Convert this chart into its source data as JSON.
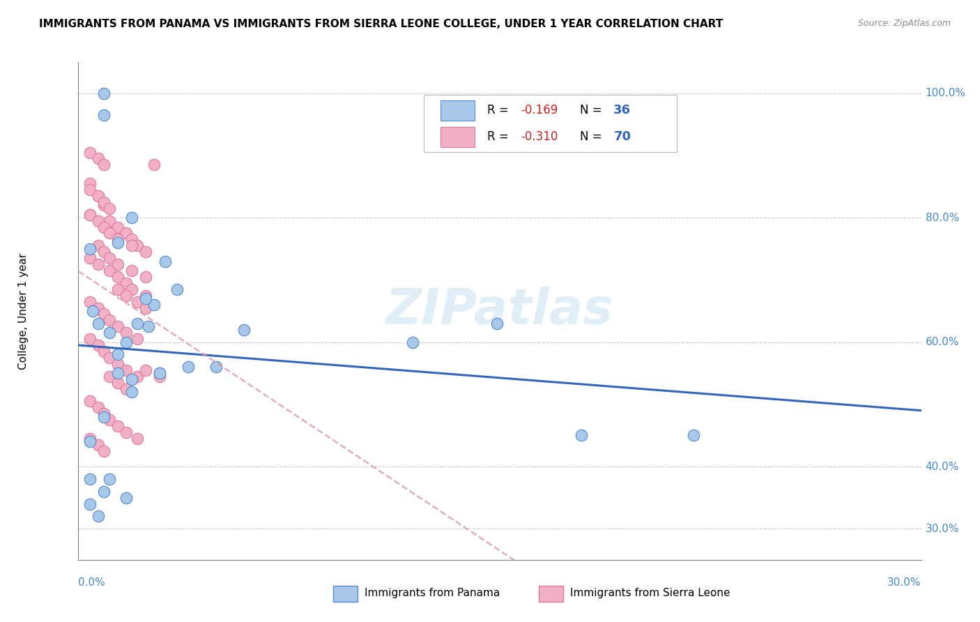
{
  "title": "IMMIGRANTS FROM PANAMA VS IMMIGRANTS FROM SIERRA LEONE COLLEGE, UNDER 1 YEAR CORRELATION CHART",
  "source": "Source: ZipAtlas.com",
  "ylabel": "College, Under 1 year",
  "xlim": [
    0.0,
    0.3
  ],
  "ylim": [
    0.25,
    1.05
  ],
  "yticks": [
    0.3,
    0.4,
    0.6,
    0.8,
    1.0
  ],
  "ytick_labels": [
    "30.0%",
    "40.0%",
    "60.0%",
    "80.0%",
    "100.0%"
  ],
  "xtick_left": "0.0%",
  "xtick_right": "30.0%",
  "watermark": "ZIPatlas",
  "legend_r1": "-0.169",
  "legend_n1": "36",
  "legend_r2": "-0.310",
  "legend_n2": "70",
  "color_panama": "#a8c8ea",
  "color_panama_edge": "#5588cc",
  "color_sierra": "#f2b0c4",
  "color_sierra_edge": "#dd7799",
  "color_trendline_panama": "#3366bb",
  "color_trendline_sierra": "#dd99aa",
  "panama_x": [
    0.025,
    0.035,
    0.009,
    0.019,
    0.014,
    0.005,
    0.007,
    0.011,
    0.017,
    0.021,
    0.027,
    0.031,
    0.014,
    0.009,
    0.019,
    0.024,
    0.004,
    0.014,
    0.029,
    0.039,
    0.004,
    0.009,
    0.019,
    0.029,
    0.049,
    0.059,
    0.119,
    0.149,
    0.179,
    0.004,
    0.007,
    0.011,
    0.017,
    0.219,
    0.004,
    0.009
  ],
  "panama_y": [
    0.625,
    0.685,
    0.965,
    0.8,
    0.76,
    0.65,
    0.63,
    0.615,
    0.6,
    0.63,
    0.66,
    0.73,
    0.55,
    0.48,
    0.52,
    0.67,
    0.44,
    0.58,
    0.55,
    0.56,
    0.38,
    0.36,
    0.54,
    0.55,
    0.56,
    0.62,
    0.6,
    0.63,
    0.45,
    0.34,
    0.32,
    0.38,
    0.35,
    0.45,
    0.75,
    1.0
  ],
  "sierra_x": [
    0.004,
    0.007,
    0.009,
    0.011,
    0.014,
    0.017,
    0.019,
    0.021,
    0.024,
    0.027,
    0.004,
    0.007,
    0.011,
    0.014,
    0.017,
    0.019,
    0.024,
    0.004,
    0.007,
    0.009,
    0.011,
    0.014,
    0.017,
    0.021,
    0.004,
    0.007,
    0.009,
    0.011,
    0.014,
    0.019,
    0.024,
    0.004,
    0.007,
    0.009,
    0.011,
    0.014,
    0.017,
    0.021,
    0.004,
    0.007,
    0.009,
    0.011,
    0.014,
    0.019,
    0.024,
    0.029,
    0.004,
    0.007,
    0.009,
    0.011,
    0.014,
    0.017,
    0.021,
    0.024,
    0.004,
    0.007,
    0.009,
    0.011,
    0.014,
    0.017,
    0.021,
    0.004,
    0.007,
    0.009,
    0.011,
    0.014,
    0.017,
    0.004,
    0.007,
    0.009
  ],
  "sierra_y": [
    0.855,
    0.835,
    0.82,
    0.795,
    0.785,
    0.775,
    0.765,
    0.755,
    0.745,
    0.885,
    0.735,
    0.725,
    0.715,
    0.705,
    0.695,
    0.685,
    0.675,
    0.665,
    0.655,
    0.645,
    0.635,
    0.625,
    0.615,
    0.605,
    0.805,
    0.755,
    0.745,
    0.735,
    0.725,
    0.715,
    0.705,
    0.605,
    0.595,
    0.585,
    0.575,
    0.565,
    0.555,
    0.545,
    0.805,
    0.795,
    0.785,
    0.775,
    0.765,
    0.755,
    0.555,
    0.545,
    0.845,
    0.835,
    0.825,
    0.815,
    0.685,
    0.675,
    0.665,
    0.655,
    0.505,
    0.495,
    0.485,
    0.475,
    0.465,
    0.455,
    0.445,
    0.905,
    0.895,
    0.885,
    0.545,
    0.535,
    0.525,
    0.445,
    0.435,
    0.425
  ]
}
